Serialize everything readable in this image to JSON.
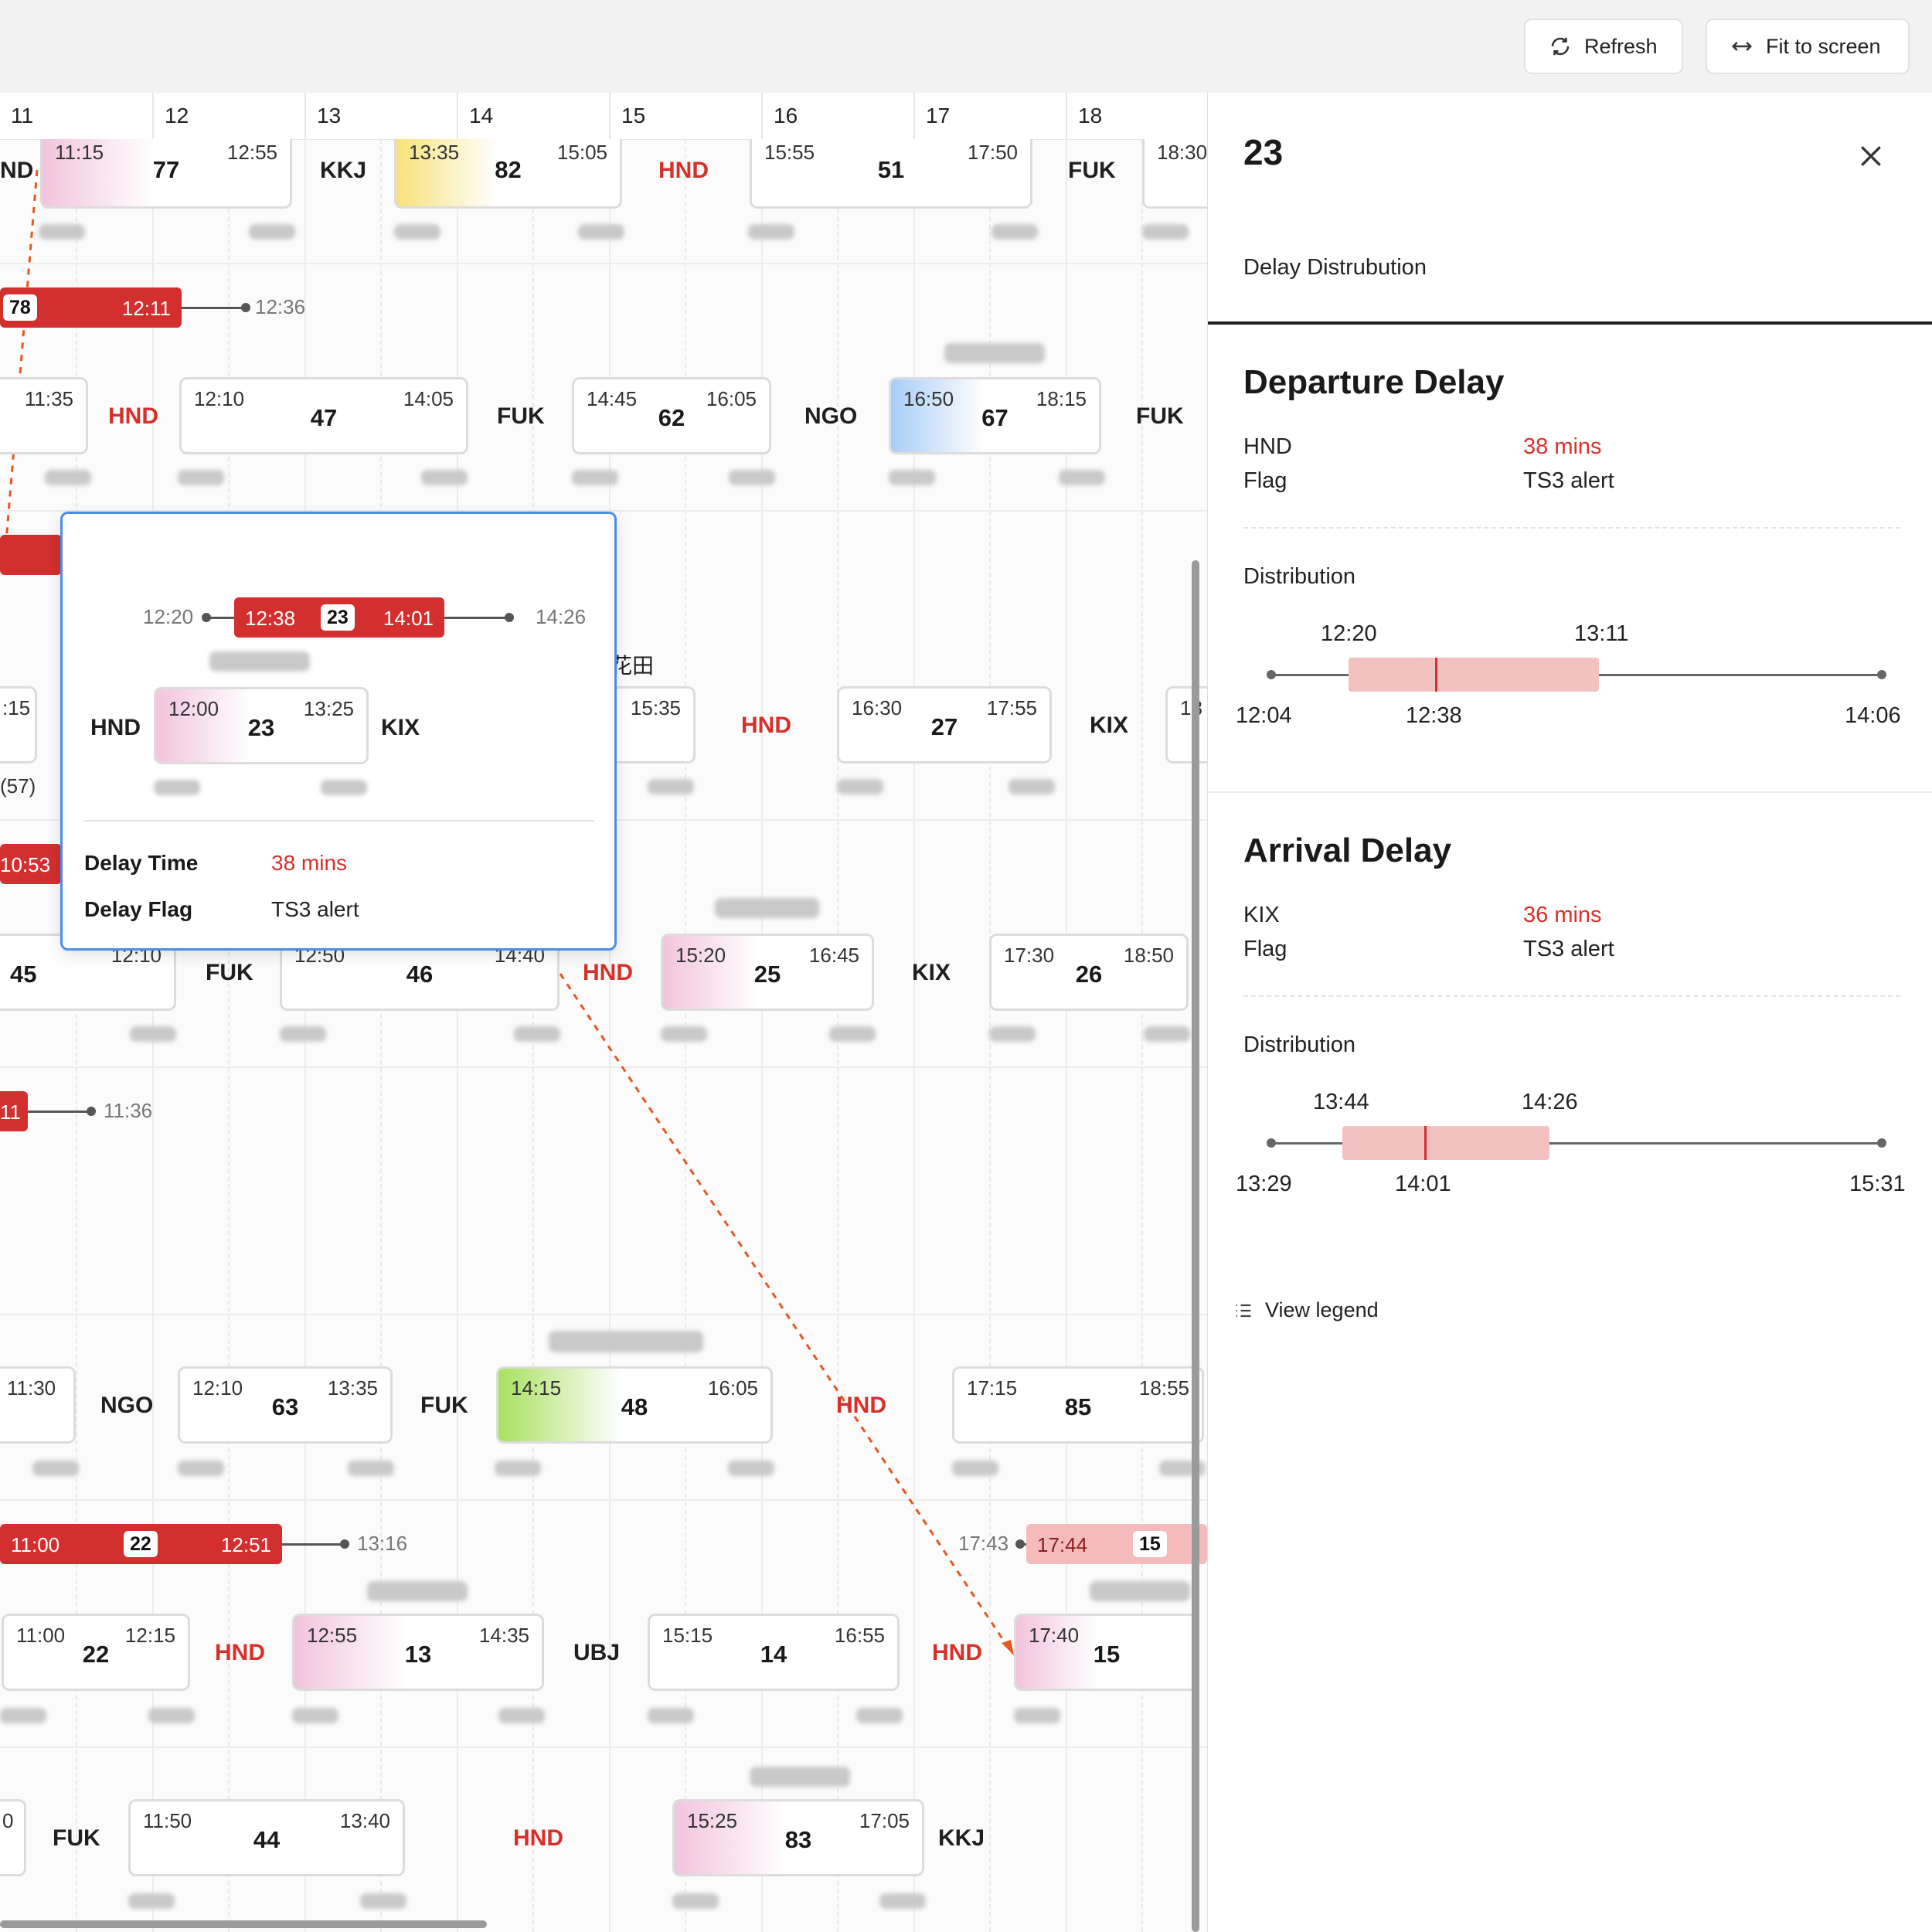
{
  "toolbar": {
    "refresh": "Refresh",
    "fit": "Fit to screen",
    "refresh_icon": "refresh-icon",
    "fit_icon": "arrows-horizontal-icon"
  },
  "timeline": {
    "hours": [
      "11",
      "12",
      "13",
      "14",
      "15",
      "16",
      "17",
      "18"
    ]
  },
  "rows": {
    "r1": {
      "c1_t1": "11:15",
      "c1_t2": "12:55",
      "c1_n": "77",
      "ap1": "KKJ",
      "c2_t1": "13:35",
      "c2_t2": "15:05",
      "c2_n": "82",
      "ap2": "HND",
      "c3_t1": "15:55",
      "c3_t2": "17:50",
      "c3_n": "51",
      "ap3": "FUK",
      "c4_t1": "18:30",
      "ap0": "ND"
    },
    "r2": {
      "b_num": "78",
      "b_r": "12:11",
      "w": "12:36"
    },
    "r3": {
      "c0_t2": "11:35",
      "ap1": "HND",
      "c1_t1": "12:10",
      "c1_t2": "14:05",
      "c1_n": "47",
      "ap2": "FUK",
      "c2_t1": "14:45",
      "c2_t2": "16:05",
      "c2_n": "62",
      "ap3": "NGO",
      "c3_t1": "16:50",
      "c3_t2": "18:15",
      "c3_n": "67",
      "ap4": "FUK"
    },
    "r4": {
      "side": "花田",
      "c0_t2": ":15",
      "c1_t2": "15:35",
      "ap1": "HND",
      "c2_t1": "16:30",
      "c2_t2": "17:55",
      "c2_n": "27",
      "ap2": "KIX",
      "c3_t1": "18",
      "paren": "(57)"
    },
    "r5": {
      "bar_r": "10:53",
      "c0_n": "45",
      "c0_t2": "12:10",
      "ap1": "FUK",
      "c1_t1": "12:50",
      "c1_t2": "14:40",
      "c1_n": "46",
      "ap2": "HND",
      "c2_t1": "15:20",
      "c2_t2": "16:45",
      "c2_n": "25",
      "ap3": "KIX",
      "c3_t1": "17:30",
      "c3_t2": "18:50",
      "c3_n": "26"
    },
    "r6": {
      "b_r": "11",
      "w": "11:36"
    },
    "r7": {
      "c0_t2": "11:30",
      "ap1": "NGO",
      "c1_t1": "12:10",
      "c1_t2": "13:35",
      "c1_n": "63",
      "ap2": "FUK",
      "c2_t1": "14:15",
      "c2_t2": "16:05",
      "c2_n": "48",
      "ap3": "HND",
      "c3_t1": "17:15",
      "c3_t2": "18:55",
      "c3_n": "85"
    },
    "r8": {
      "b_l": "11:00",
      "b_num": "22",
      "b_r": "12:51",
      "w": "13:16",
      "w2": "17:43",
      "b2_l": "17:44",
      "b2_num": "15"
    },
    "r9": {
      "c1_t1": "11:00",
      "c1_t2": "12:15",
      "c1_n": "22",
      "ap1": "HND",
      "c2_t1": "12:55",
      "c2_t2": "14:35",
      "c2_n": "13",
      "ap2": "UBJ",
      "c3_t1": "15:15",
      "c3_t2": "16:55",
      "c3_n": "14",
      "ap3": "HND",
      "c4_t1": "17:40",
      "c4_n": "15"
    },
    "r10": {
      "c0_t": "0",
      "ap1": "FUK",
      "c1_t1": "11:50",
      "c1_t2": "13:40",
      "c1_n": "44",
      "ap2": "HND",
      "c2_t1": "15:25",
      "c2_t2": "17:05",
      "c2_n": "83",
      "ap3": "KKJ"
    }
  },
  "popover": {
    "w_left": "12:20",
    "bar_l": "12:38",
    "bar_num": "23",
    "bar_r": "14:01",
    "w_right": "14:26",
    "dep": "HND",
    "arr": "KIX",
    "card_t1": "12:00",
    "card_t2": "13:25",
    "card_n": "23",
    "delay_time_label": "Delay Time",
    "delay_time_value": "38 mins",
    "delay_flag_label": "Delay Flag",
    "delay_flag_value": "TS3 alert"
  },
  "panel": {
    "title": "23",
    "subtitle": "Delay Distrubution",
    "close_icon": "close-icon",
    "departure": {
      "heading": "Departure Delay",
      "airport": "HND",
      "delay": "38 mins",
      "flag_label": "Flag",
      "flag": "TS3 alert",
      "dist_label": "Distribution",
      "q1": "12:20",
      "q3": "13:11",
      "min": "12:04",
      "median": "12:38",
      "max": "14:06"
    },
    "arrival": {
      "heading": "Arrival Delay",
      "airport": "KIX",
      "delay": "36 mins",
      "flag_label": "Flag",
      "flag": "TS3 alert",
      "dist_label": "Distribution",
      "q1": "13:44",
      "q3": "14:26",
      "min": "13:29",
      "median": "14:01",
      "max": "15:31"
    },
    "legend": "View legend",
    "legend_icon": "list-icon"
  },
  "colors": {
    "delay_red": "#d32f2f",
    "airport_red": "#d7302a",
    "popover_border": "#4a8ee8",
    "box_fill": "#f4c1c1"
  }
}
